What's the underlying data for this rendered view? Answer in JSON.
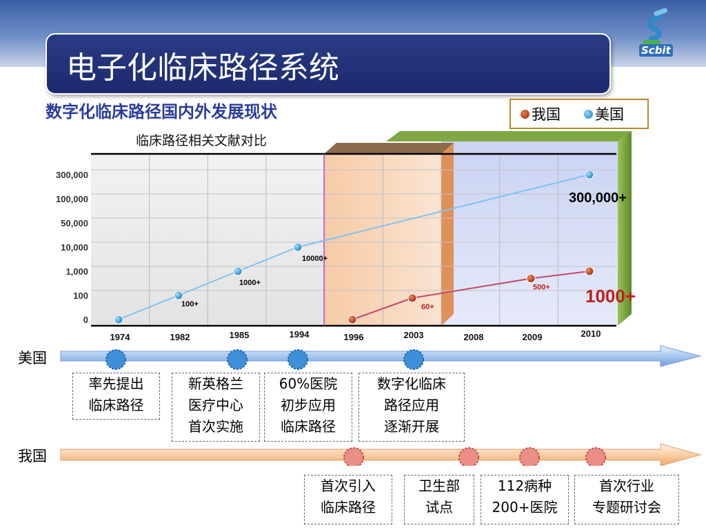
{
  "slide": {
    "title": "电子化临床路径系统",
    "logo_text": "Scbit",
    "subtitle": "数字化临床路径国内外发展现状"
  },
  "legend": {
    "china": "我国",
    "usa": "美国"
  },
  "chart_data": {
    "type": "line",
    "title": "临床路径相关文献对比",
    "xlabel": "",
    "ylabel": "",
    "categories": [
      "1974",
      "1982",
      "1985",
      "1994",
      "1996",
      "2003",
      "2008",
      "2009",
      "2010"
    ],
    "y_tick_labels": [
      "0",
      "100",
      "1,000",
      "10,000",
      "50,000",
      "100,000",
      "300,000"
    ],
    "series": [
      {
        "name": "美国",
        "color": "#7cc3f2",
        "marker_color": "#3aa0d8",
        "points": [
          {
            "x": "1974",
            "y": 0
          },
          {
            "x": "1982",
            "y": 100,
            "label": "100+"
          },
          {
            "x": "1985",
            "y": 1000,
            "label": "1000+"
          },
          {
            "x": "1994",
            "y": 10000,
            "label": "10000+"
          },
          {
            "x": "2010",
            "y": 300000,
            "label": "300,000+"
          }
        ]
      },
      {
        "name": "我国",
        "color": "#c4496a",
        "marker_color": "#b83a1c",
        "points": [
          {
            "x": "1996",
            "y": 0
          },
          {
            "x": "2003",
            "y": 60,
            "label": "60+"
          },
          {
            "x": "2009",
            "y": 500,
            "label": "500+"
          },
          {
            "x": "2010",
            "y": 1000,
            "label": "1000+"
          }
        ]
      }
    ],
    "grid": true
  },
  "timeline": {
    "usa_label": "美国",
    "china_label": "我国",
    "usa_milestones": [
      "率先提出\n临床路径",
      "新英格兰\n医疗中心\n首次实施",
      "60%医院\n初步应用\n临床路径",
      "数字化临床\n路径应用\n逐渐开展"
    ],
    "china_milestones": [
      "首次引入\n临床路径",
      "卫生部\n试点",
      "112病种\n200+医院",
      "首次行业\n专题研讨会"
    ]
  },
  "colors": {
    "title_bg": "#1c2a6e",
    "usa": "#3aa0d8",
    "china": "#c44a3a",
    "subtitle": "#2b3c9a"
  }
}
